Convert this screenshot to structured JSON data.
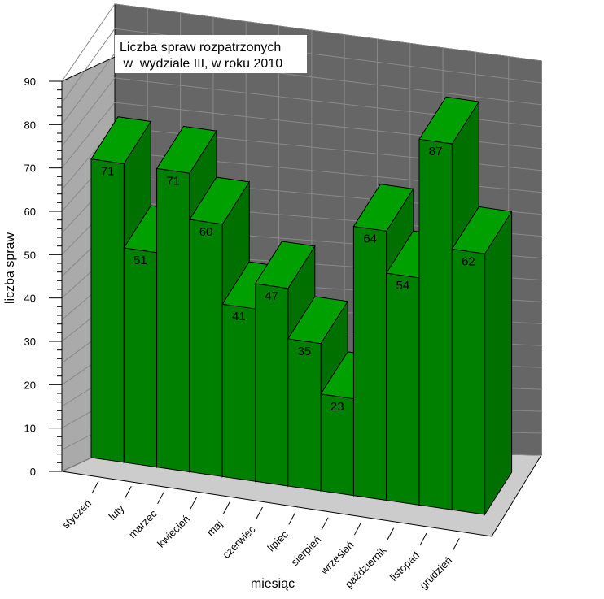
{
  "chart_data": {
    "type": "bar",
    "style": "3d",
    "title_lines": [
      "Liczba spraw rozpatrzonych",
      " w  wydziale III, w roku 2010"
    ],
    "xlabel": "miesiąc",
    "ylabel": "liczba spraw",
    "ylim": [
      0,
      90
    ],
    "yticks": [
      "0",
      "10",
      "20",
      "30",
      "40",
      "50",
      "60",
      "70",
      "80",
      "90"
    ],
    "grid": true,
    "legend": "none",
    "categories": [
      "styczeń",
      "luty",
      "marzec",
      "kwiecień",
      "maj",
      "czerwiec",
      "lipiec",
      "sierpień",
      "wrzesień",
      "październik",
      "listopad",
      "grudzień"
    ],
    "values": [
      71,
      51,
      71,
      60,
      41,
      47,
      35,
      23,
      64,
      54,
      87,
      62
    ],
    "colors": {
      "bar_front": "#008000",
      "bar_side": "#007000",
      "bar_top": "#00a000",
      "back_wall": "#666666",
      "side_wall": "#aaaaaa",
      "floor": "#cccccc"
    }
  }
}
